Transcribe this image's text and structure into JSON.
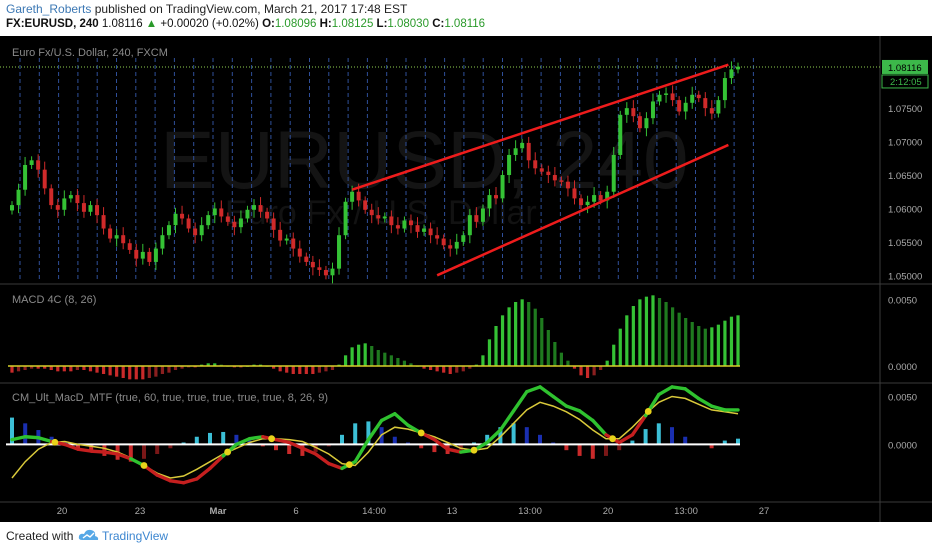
{
  "header": {
    "author": "Gareth_Roberts",
    "published": " published on TradingView.com, March 21, 2017 17:48 EST",
    "symbol": "FX:EURUSD, 240",
    "last": "1.08116",
    "arrow": "▲",
    "change": "+0.00020 (+0.02%)",
    "o_label": "O:",
    "o_val": "1.08096",
    "h_label": "H:",
    "h_val": "1.08125",
    "l_label": "L:",
    "l_val": "1.08030",
    "c_label": "C:",
    "c_val": "1.08116"
  },
  "footer": {
    "created_with": "Created with",
    "brand": "TradingView"
  },
  "chart_data": [
    {
      "type": "candlestick",
      "title": "Euro Fx/U.S. Dollar, 240, FXCM",
      "watermark": "EURUSD, 240",
      "watermark_sub": "Euro Fx / U.S. Dollar",
      "ylim": [
        1.049,
        1.0825
      ],
      "y_ticks": [
        "1.05000",
        "1.05500",
        "1.06000",
        "1.06500",
        "1.07000",
        "1.07500"
      ],
      "last_price": "1.08116",
      "countdown": "2:12:05",
      "x_ticks": [
        "20",
        "23",
        "Mar",
        "6",
        "14:00",
        "13",
        "13:00",
        "20",
        "13:00",
        "27"
      ],
      "close_series": [
        1.0605,
        1.0628,
        1.0665,
        1.0672,
        1.0658,
        1.063,
        1.0605,
        1.0598,
        1.0615,
        1.062,
        1.0608,
        1.0595,
        1.0605,
        1.059,
        1.057,
        1.0555,
        1.056,
        1.0548,
        1.0538,
        1.0525,
        1.0535,
        1.052,
        1.054,
        1.056,
        1.0575,
        1.0592,
        1.0585,
        1.057,
        1.056,
        1.0575,
        1.059,
        1.06,
        1.0588,
        1.058,
        1.0572,
        1.0585,
        1.0598,
        1.0605,
        1.0595,
        1.0585,
        1.0568,
        1.0552,
        1.0555,
        1.054,
        1.0528,
        1.052,
        1.0512,
        1.0508,
        1.05,
        1.051,
        1.056,
        1.061,
        1.0625,
        1.0612,
        1.0598,
        1.059,
        1.0585,
        1.0588,
        1.0575,
        1.057,
        1.0582,
        1.0575,
        1.0565,
        1.057,
        1.056,
        1.0555,
        1.0545,
        1.054,
        1.055,
        1.056,
        1.059,
        1.058,
        1.06,
        1.062,
        1.0615,
        1.065,
        1.068,
        1.069,
        1.0698,
        1.0672,
        1.066,
        1.0655,
        1.065,
        1.0642,
        1.064,
        1.063,
        1.0615,
        1.0605,
        1.061,
        1.062,
        1.0612,
        1.0625,
        1.068,
        1.074,
        1.075,
        1.0738,
        1.072,
        1.0735,
        1.076,
        1.077,
        1.0772,
        1.0762,
        1.0745,
        1.0758,
        1.077,
        1.0765,
        1.075,
        1.0742,
        1.0762,
        1.0795,
        1.0808,
        1.0812
      ],
      "channel": [
        {
          "x": [
            52,
            108
          ],
          "y": [
            1.0628,
            1.0815
          ]
        },
        {
          "x": [
            65,
            108
          ],
          "y": [
            1.05,
            1.0695
          ]
        }
      ]
    },
    {
      "type": "bar",
      "title": "MACD 4C (8, 26)",
      "ylim": [
        -0.0012,
        0.006
      ],
      "y_ticks": [
        "0.0050",
        "0.0000"
      ],
      "values": [
        -0.0005,
        -0.0004,
        -0.0003,
        -0.0002,
        -0.0002,
        -0.0002,
        -0.0003,
        -0.0004,
        -0.0004,
        -0.0004,
        -0.0003,
        -0.0003,
        -0.0004,
        -0.0005,
        -0.0006,
        -0.0007,
        -0.0008,
        -0.0009,
        -0.001,
        -0.001,
        -0.001,
        -0.0009,
        -0.0008,
        -0.0006,
        -0.0005,
        -0.0003,
        -0.0002,
        -0.0001,
        -0.0001,
        0.0001,
        0.0002,
        0.0002,
        0.0001,
        0.0,
        -0.0001,
        -0.0001,
        0.0,
        0.0001,
        0.0001,
        0.0,
        -0.0002,
        -0.0004,
        -0.0005,
        -0.0006,
        -0.0006,
        -0.0006,
        -0.0006,
        -0.0005,
        -0.0004,
        -0.0003,
        0.0001,
        0.0008,
        0.0014,
        0.0016,
        0.0017,
        0.0015,
        0.0012,
        0.001,
        0.0008,
        0.0006,
        0.0004,
        0.0002,
        0.0,
        -0.0002,
        -0.0003,
        -0.0004,
        -0.0005,
        -0.0006,
        -0.0005,
        -0.0004,
        -0.0002,
        0.0001,
        0.0008,
        0.002,
        0.003,
        0.0038,
        0.0044,
        0.0048,
        0.005,
        0.0048,
        0.0043,
        0.0036,
        0.0027,
        0.0018,
        0.001,
        0.0004,
        -0.0002,
        -0.0007,
        -0.0009,
        -0.0007,
        -0.0003,
        0.0004,
        0.0016,
        0.0028,
        0.0038,
        0.0045,
        0.005,
        0.0052,
        0.0053,
        0.0051,
        0.0048,
        0.0044,
        0.004,
        0.0036,
        0.0033,
        0.003,
        0.0028,
        0.0029,
        0.0031,
        0.0034,
        0.0037,
        0.0038
      ]
    },
    {
      "type": "line",
      "title": "CM_Ult_MacD_MTF (true, 60, true, true, true, true, true, 8, 26, 9)",
      "ylim": [
        -0.0058,
        0.0062
      ],
      "y_ticks": [
        "0.0050",
        "0.0000"
      ],
      "series": [
        {
          "values": [
            0.0005,
            0.0008,
            0.0007,
            0.0003,
            0.0,
            -0.0005,
            -0.0007,
            -0.0008,
            -0.001,
            -0.0015,
            -0.0022,
            -0.0032,
            -0.0038,
            -0.004,
            -0.0036,
            -0.0025,
            -0.0012,
            0.0,
            0.0006,
            0.0008,
            0.0005,
            0.0002,
            -0.0004,
            -0.001,
            -0.002,
            -0.0025,
            -0.0018,
            0.0005,
            0.0025,
            0.0032,
            0.002,
            0.0012,
            0.0005,
            -0.0005,
            -0.0008,
            -0.0006,
            0.0002,
            0.0015,
            0.0035,
            0.0055,
            0.006,
            0.005,
            0.004,
            0.0035,
            0.0025,
            0.001,
            0.0002,
            0.001,
            0.003,
            0.0052,
            0.006,
            0.0058,
            0.0048,
            0.004,
            0.0036,
            0.0036
          ]
        },
        {
          "values": [
            -0.0035,
            -0.0018,
            -0.0005,
            0.0002,
            0.0003,
            0.0,
            -0.0002,
            -0.0004,
            -0.0008,
            -0.0014,
            -0.0022,
            -0.003,
            -0.0035,
            -0.0033,
            -0.0026,
            -0.0018,
            -0.001,
            -0.0004,
            0.0002,
            0.0006,
            0.0006,
            0.0005,
            0.0003,
            -0.0003,
            -0.001,
            -0.002,
            -0.0022,
            -0.0008,
            0.001,
            0.0018,
            0.0016,
            0.0012,
            0.0008,
            0.0002,
            -0.0004,
            -0.0006,
            -0.0004,
            0.0008,
            0.0022,
            0.0036,
            0.0044,
            0.004,
            0.0034,
            0.0026,
            0.0015,
            0.0006,
            0.0006,
            0.0018,
            0.0032,
            0.0044,
            0.005,
            0.0048,
            0.0042,
            0.0036,
            0.0034,
            0.0032
          ]
        },
        {
          "values": [
            0.0028,
            0.0022,
            0.0015,
            0.0008,
            0.0002,
            -0.0004,
            -0.0008,
            -0.0012,
            -0.0016,
            -0.0018,
            -0.0015,
            -0.001,
            -0.0004,
            0.0002,
            0.0008,
            0.0012,
            0.0013,
            0.001,
            0.0004,
            -0.0002,
            -0.0006,
            -0.001,
            -0.0012,
            -0.0008,
            -0.0002,
            0.001,
            0.0022,
            0.0024,
            0.0018,
            0.0008,
            0.0002,
            -0.0004,
            -0.0008,
            -0.001,
            -0.0006,
            0.0002,
            0.001,
            0.0018,
            0.0022,
            0.0018,
            0.001,
            0.0002,
            -0.0006,
            -0.0012,
            -0.0015,
            -0.0012,
            -0.0006,
            0.0004,
            0.0016,
            0.0022,
            0.0018,
            0.0008,
            0.0,
            -0.0004,
            0.0004,
            0.0006
          ]
        }
      ]
    }
  ]
}
